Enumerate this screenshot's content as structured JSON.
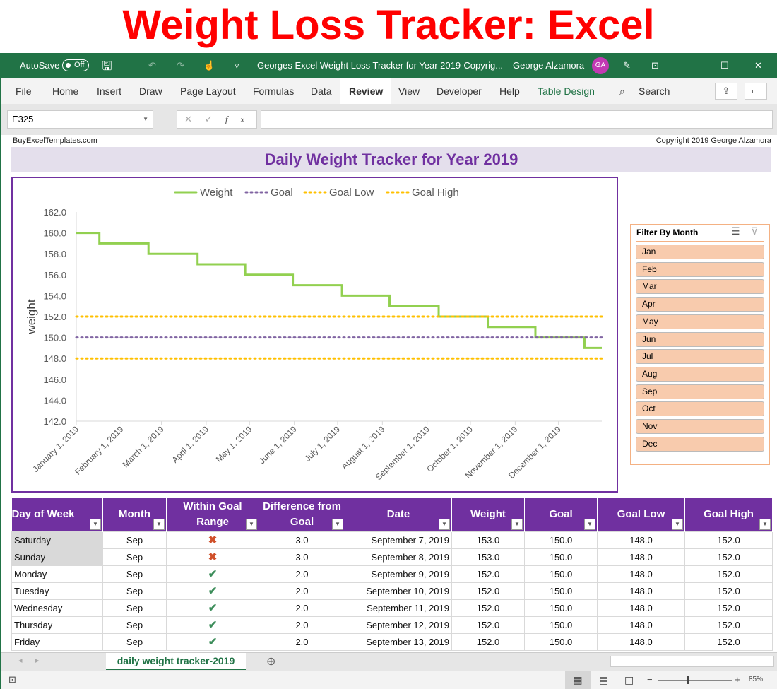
{
  "banner": {
    "title": "Weight Loss Tracker: Excel"
  },
  "titlebar": {
    "autosave": "AutoSave",
    "toggle": "Off",
    "doc_title": "Georges Excel Weight Loss Tracker for Year 2019-Copyrig...",
    "user": "George Alzamora",
    "initials": "GA"
  },
  "ribbon": {
    "tabs": [
      "File",
      "Home",
      "Insert",
      "Draw",
      "Page Layout",
      "Formulas",
      "Data",
      "Review",
      "View",
      "Developer",
      "Help",
      "Table Design"
    ],
    "active": "Review",
    "search": "Search"
  },
  "formula_bar": {
    "name_box": "E325",
    "value": ""
  },
  "sheet": {
    "left_note": "BuyExcelTemplates.com",
    "right_note": "Copyright 2019  George Alzamora",
    "header": "Daily Weight Tracker for Year 2019",
    "tab": "daily weight tracker-2019",
    "zoom": "85%"
  },
  "chart_data": {
    "type": "line",
    "ylabel": "weight",
    "ylim": [
      142,
      162
    ],
    "yticks": [
      "162.0",
      "160.0",
      "158.0",
      "156.0",
      "154.0",
      "152.0",
      "150.0",
      "148.0",
      "146.0",
      "144.0",
      "142.0"
    ],
    "xticks": [
      "January 1, 2019",
      "February 1, 2019",
      "March 1, 2019",
      "April 1, 2019",
      "May 1, 2019",
      "June 1, 2019",
      "July 1, 2019",
      "August 1, 2019",
      "September 1, 2019",
      "October 1, 2019",
      "November 1, 2019",
      "December 1, 2019"
    ],
    "xrange": [
      "2019-01-01",
      "2019-12-31"
    ],
    "grid": false,
    "legend": "top",
    "series": [
      {
        "name": "Weight",
        "color": "#92d050",
        "style": "step",
        "points": [
          [
            "2019-01-01",
            160
          ],
          [
            "2019-01-17",
            159
          ],
          [
            "2019-02-20",
            158
          ],
          [
            "2019-03-26",
            157
          ],
          [
            "2019-04-28",
            156
          ],
          [
            "2019-05-31",
            155
          ],
          [
            "2019-07-04",
            154
          ],
          [
            "2019-08-06",
            153
          ],
          [
            "2019-09-09",
            152
          ],
          [
            "2019-10-13",
            151
          ],
          [
            "2019-11-15",
            150
          ],
          [
            "2019-12-19",
            149
          ],
          [
            "2019-12-31",
            149
          ]
        ]
      },
      {
        "name": "Goal",
        "color": "#8064a2",
        "style": "dotted",
        "value": 150
      },
      {
        "name": "Goal Low",
        "color": "#ffc000",
        "style": "dotted",
        "value": 148
      },
      {
        "name": "Goal High",
        "color": "#ffc000",
        "style": "dotted",
        "value": 152
      }
    ]
  },
  "slicer": {
    "title": "Filter By Month",
    "items": [
      "Jan",
      "Feb",
      "Mar",
      "Apr",
      "May",
      "Jun",
      "Jul",
      "Aug",
      "Sep",
      "Oct",
      "Nov",
      "Dec"
    ]
  },
  "table": {
    "columns": [
      "Day of Week",
      "Month",
      "Within Goal Range",
      "Difference from Goal",
      "Date",
      "Weight",
      "Goal",
      "Goal Low",
      "Goal High"
    ],
    "rows": [
      [
        "Saturday",
        "Sep",
        "no",
        "3.0",
        "September 7, 2019",
        "153.0",
        "150.0",
        "148.0",
        "152.0"
      ],
      [
        "Sunday",
        "Sep",
        "no",
        "3.0",
        "September 8, 2019",
        "153.0",
        "150.0",
        "148.0",
        "152.0"
      ],
      [
        "Monday",
        "Sep",
        "yes",
        "2.0",
        "September 9, 2019",
        "152.0",
        "150.0",
        "148.0",
        "152.0"
      ],
      [
        "Tuesday",
        "Sep",
        "yes",
        "2.0",
        "September 10, 2019",
        "152.0",
        "150.0",
        "148.0",
        "152.0"
      ],
      [
        "Wednesday",
        "Sep",
        "yes",
        "2.0",
        "September 11, 2019",
        "152.0",
        "150.0",
        "148.0",
        "152.0"
      ],
      [
        "Thursday",
        "Sep",
        "yes",
        "2.0",
        "September 12, 2019",
        "152.0",
        "150.0",
        "148.0",
        "152.0"
      ],
      [
        "Friday",
        "Sep",
        "yes",
        "2.0",
        "September 13, 2019",
        "152.0",
        "150.0",
        "148.0",
        "152.0"
      ]
    ]
  }
}
